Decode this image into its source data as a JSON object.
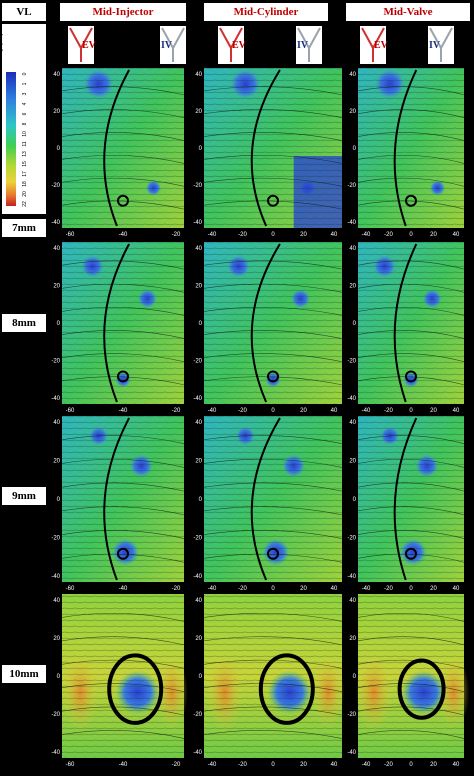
{
  "corner_label": "VL",
  "columns": [
    {
      "title": "Mid-Injector",
      "ev": "EV",
      "iv": "IV"
    },
    {
      "title": "Mid-Cylinder",
      "ev": "EV",
      "iv": "IV"
    },
    {
      "title": "Mid-Valve",
      "ev": "EV",
      "iv": "IV"
    }
  ],
  "rows": [
    {
      "label": "7mm"
    },
    {
      "label": "8mm"
    },
    {
      "label": "9mm"
    },
    {
      "label": "10mm"
    }
  ],
  "colorbar": {
    "title": "Length[m/s]",
    "ticks": [
      "0",
      "1",
      "3",
      "4",
      "6",
      "8",
      "10",
      "11",
      "13",
      "15",
      "17",
      "18",
      "20",
      "22"
    ]
  },
  "axes": {
    "y_ticks": [
      "40",
      "20",
      "0",
      "-20",
      "-40"
    ],
    "x_ticks_col1": [
      "-60",
      "-40",
      "-20"
    ],
    "x_ticks_col2": [
      "-40",
      "-20",
      "0",
      "20",
      "40"
    ],
    "x_ticks_col3": [
      "-40",
      "-20",
      "0",
      "20",
      "40"
    ]
  },
  "colors": {
    "background": "#000000",
    "header_text": "#c00000",
    "field_high": "#2e4fd8",
    "field_mid": "#3fbf6a",
    "field_low": "#d9d23a",
    "field_hot": "#e0802a"
  }
}
